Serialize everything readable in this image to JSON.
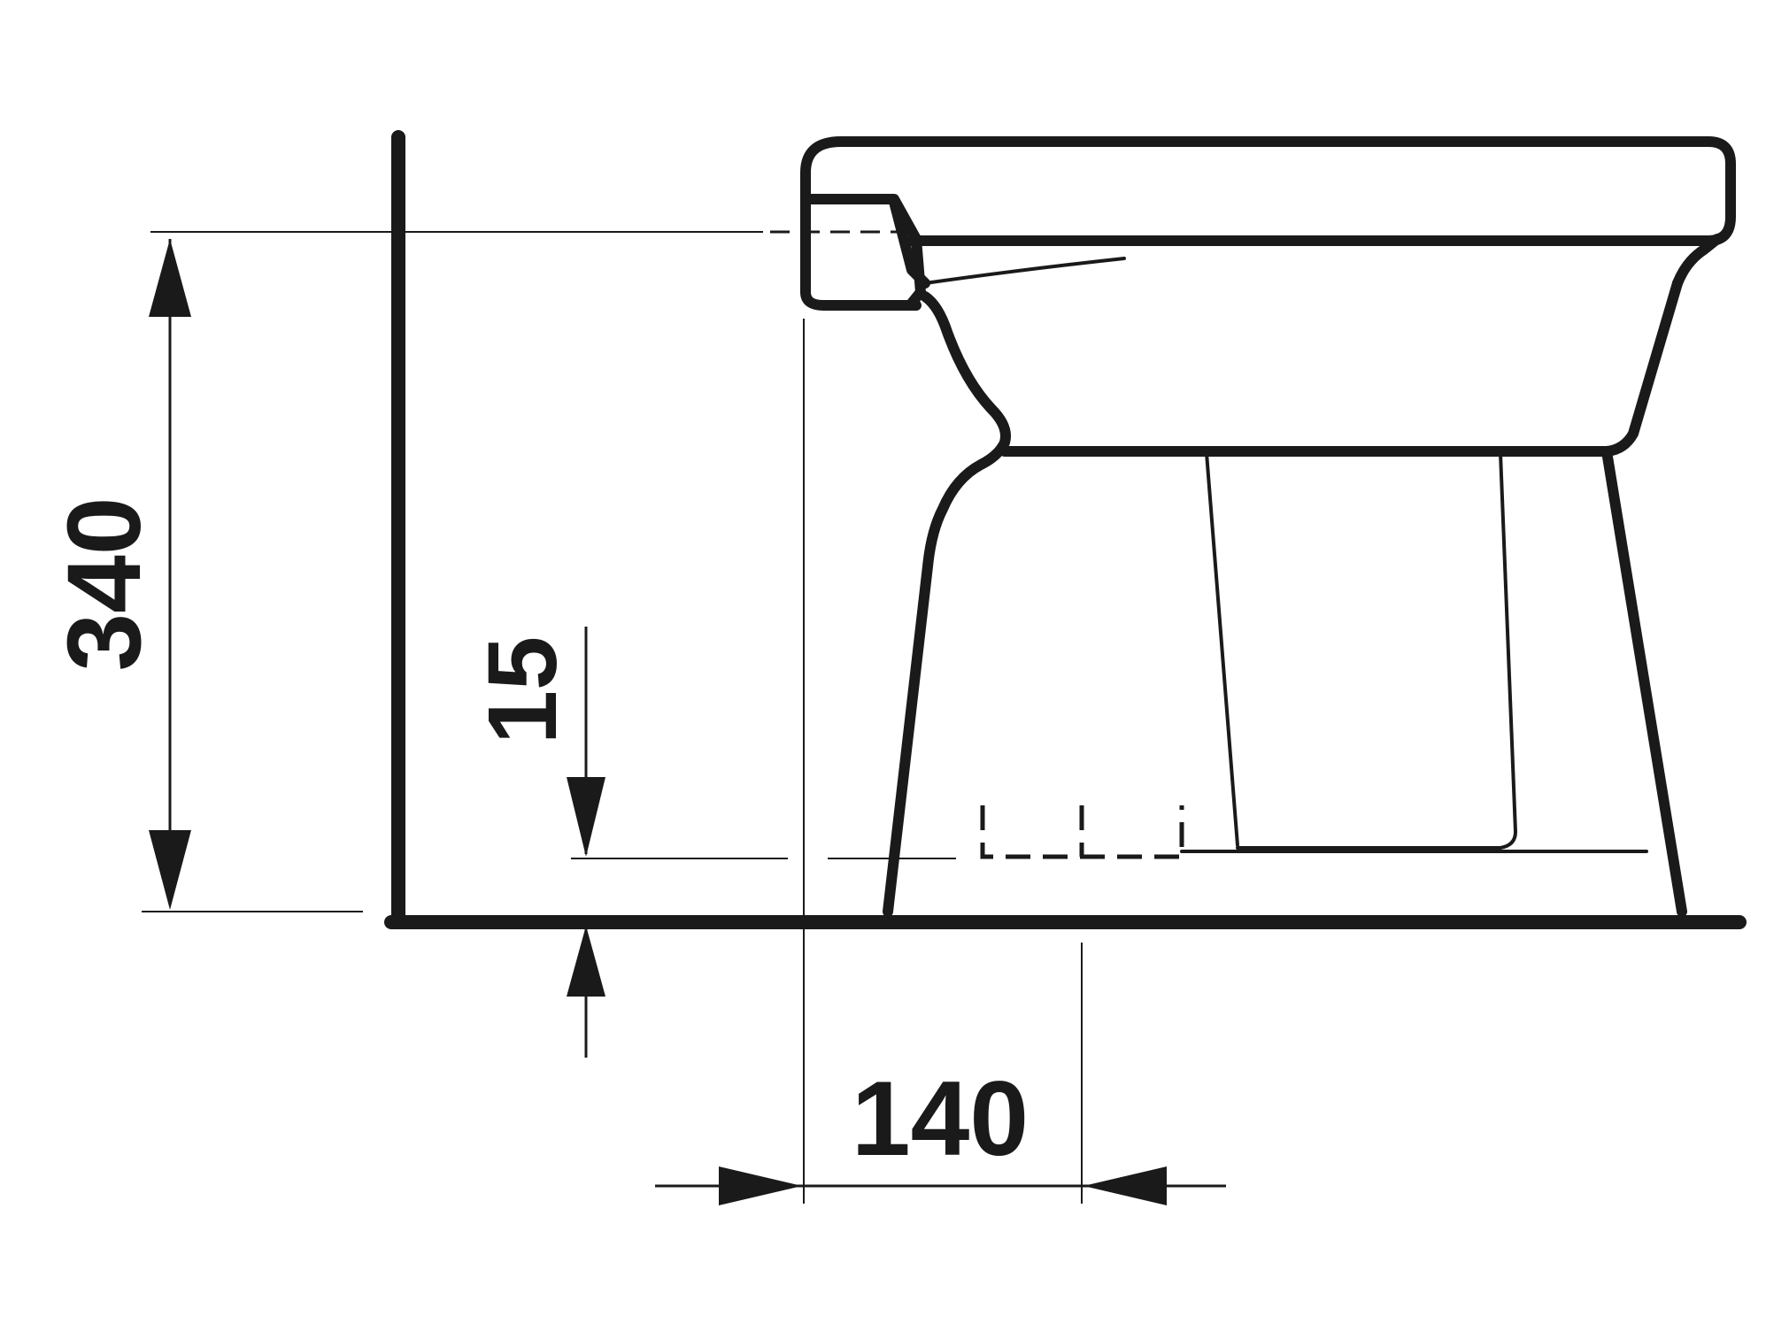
{
  "dimensions": {
    "height_label": "340",
    "floor_offset_label": "15",
    "outlet_distance_label": "140"
  },
  "colors": {
    "line": "#1a1a1a",
    "background": "#ffffff"
  }
}
